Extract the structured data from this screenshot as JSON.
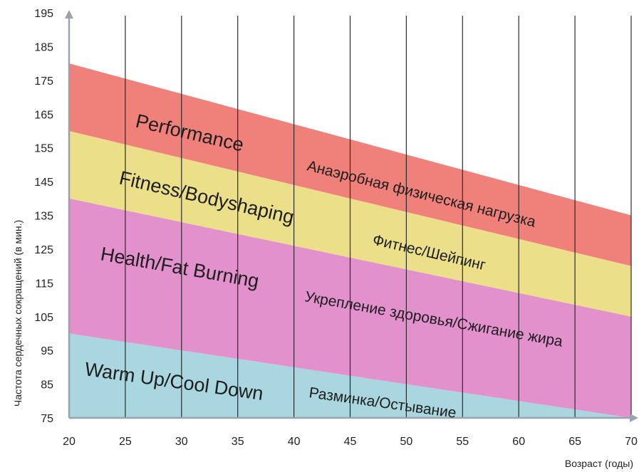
{
  "chart_data": {
    "type": "area",
    "title": "",
    "xlabel": "Возраст (годы)",
    "ylabel": "Частота сердечных сокращений (в мин.)",
    "xlim": [
      20,
      70
    ],
    "ylim": [
      75,
      195
    ],
    "x_ticks": [
      20,
      25,
      30,
      35,
      40,
      45,
      50,
      55,
      60,
      65,
      70
    ],
    "y_ticks": [
      75,
      85,
      95,
      105,
      115,
      125,
      135,
      145,
      155,
      165,
      175,
      185,
      195
    ],
    "grid": "vertical",
    "bands": [
      {
        "color": "#a9d6df",
        "label_en": "Warm Up/Cool Down",
        "label_ru": "Разминка/Остывание",
        "lower": [
          {
            "x": 20,
            "y": 75
          },
          {
            "x": 70,
            "y": 75
          }
        ],
        "upper": [
          {
            "x": 20,
            "y": 100
          },
          {
            "x": 70,
            "y": 75
          }
        ]
      },
      {
        "color": "#e291cd",
        "label_en": "Health/Fat Burning",
        "label_ru": "Укрепление здоровья/Сжигание жира",
        "lower": [
          {
            "x": 20,
            "y": 100
          },
          {
            "x": 70,
            "y": 75
          }
        ],
        "upper": [
          {
            "x": 20,
            "y": 140
          },
          {
            "x": 70,
            "y": 105
          }
        ]
      },
      {
        "color": "#ebdf8a",
        "label_en": "Fitness/Bodyshaping",
        "label_ru": "Фитнес/Шейпинг",
        "lower": [
          {
            "x": 20,
            "y": 140
          },
          {
            "x": 70,
            "y": 105
          }
        ],
        "upper": [
          {
            "x": 20,
            "y": 160
          },
          {
            "x": 70,
            "y": 120
          }
        ]
      },
      {
        "color": "#f0807a",
        "label_en": "Performance",
        "label_ru": "Анаэробная физическая нагрузка",
        "lower": [
          {
            "x": 20,
            "y": 160
          },
          {
            "x": 70,
            "y": 120
          }
        ],
        "upper": [
          {
            "x": 20,
            "y": 180
          },
          {
            "x": 70,
            "y": 135
          }
        ]
      }
    ]
  }
}
